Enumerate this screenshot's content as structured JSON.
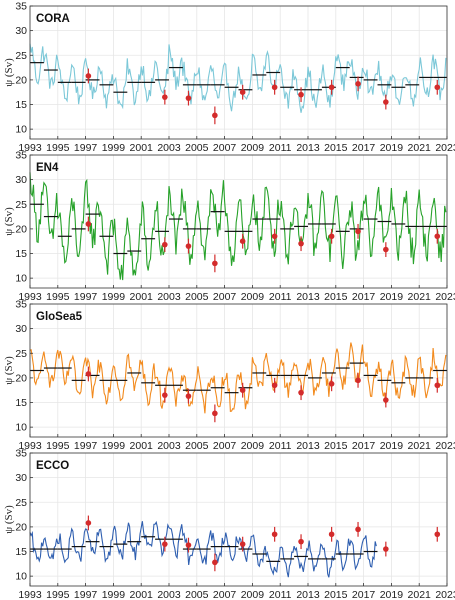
{
  "figure": {
    "panels": [
      {
        "title": "CORA",
        "color": "#7cc8d8"
      },
      {
        "title": "EN4",
        "color": "#27a22a"
      },
      {
        "title": "GloSea5",
        "color": "#f28a1d"
      },
      {
        "title": "ECCO",
        "color": "#2f5fb0"
      }
    ],
    "ylabel": "ψ (Sv)",
    "obs_color": "#d32b2b",
    "annual_mean_color": "#111111"
  },
  "chart_data": [
    {
      "type": "line",
      "title": "CORA",
      "ylabel": "ψ (Sv)",
      "xlim": [
        1993,
        2023
      ],
      "ylim": [
        8,
        35
      ],
      "xticks": [
        "1993",
        "1995",
        "1997",
        "1999",
        "2001",
        "2003",
        "2005",
        "2007",
        "2009",
        "2011",
        "2013",
        "2015",
        "2017",
        "2019",
        "2021",
        "2023"
      ],
      "yticks": [
        "10",
        "15",
        "20",
        "25",
        "30",
        "35"
      ],
      "grid": true,
      "annual_means": {
        "years": [
          1993,
          1994,
          1995,
          1996,
          1997,
          1998,
          1999,
          2000,
          2001,
          2002,
          2003,
          2004,
          2005,
          2006,
          2007,
          2008,
          2009,
          2010,
          2011,
          2012,
          2013,
          2014,
          2015,
          2016,
          2017,
          2018,
          2019,
          2020,
          2021,
          2022
        ],
        "values": [
          23.5,
          22.0,
          19.5,
          19.5,
          20.0,
          19.0,
          17.5,
          19.5,
          19.5,
          20.0,
          22.5,
          19.0,
          19.0,
          19.0,
          18.5,
          18.0,
          21.0,
          21.5,
          18.5,
          18.0,
          18.0,
          18.5,
          22.5,
          20.5,
          20.0,
          19.0,
          18.5,
          19.0,
          20.5,
          20.5
        ]
      },
      "observations": {
        "x": [
          1997.2,
          2002.7,
          2004.4,
          2006.3,
          2008.3,
          2010.6,
          2012.5,
          2014.7,
          2016.6,
          2018.6,
          2022.3
        ],
        "y": [
          20.8,
          16.5,
          16.3,
          12.8,
          17.5,
          18.5,
          17.0,
          18.5,
          19.2,
          15.5,
          18.5
        ],
        "err": [
          1.5,
          1.5,
          1.5,
          1.8,
          1.5,
          1.5,
          1.5,
          1.5,
          1.5,
          1.5,
          1.5
        ]
      }
    },
    {
      "type": "line",
      "title": "EN4",
      "ylabel": "ψ (Sv)",
      "xlim": [
        1993,
        2023
      ],
      "ylim": [
        8,
        35
      ],
      "xticks": [
        "1993",
        "1995",
        "1997",
        "1999",
        "2001",
        "2003",
        "2005",
        "2007",
        "2009",
        "2011",
        "2013",
        "2015",
        "2017",
        "2019",
        "2021",
        "2023"
      ],
      "yticks": [
        "10",
        "15",
        "20",
        "25",
        "30",
        "35"
      ],
      "grid": true,
      "annual_means": {
        "years": [
          1993,
          1994,
          1995,
          1996,
          1997,
          1998,
          1999,
          2000,
          2001,
          2002,
          2003,
          2004,
          2005,
          2006,
          2007,
          2008,
          2009,
          2010,
          2011,
          2012,
          2013,
          2014,
          2015,
          2016,
          2017,
          2018,
          2019,
          2020,
          2021,
          2022
        ],
        "values": [
          25.0,
          22.5,
          18.5,
          20.0,
          23.0,
          18.5,
          15.0,
          15.5,
          18.0,
          19.5,
          22.0,
          20.0,
          20.0,
          23.5,
          19.5,
          19.5,
          22.0,
          22.0,
          20.0,
          20.5,
          21.0,
          21.0,
          19.5,
          20.0,
          22.0,
          21.5,
          21.0,
          20.5,
          20.5,
          20.5
        ]
      },
      "observations": {
        "x": [
          1997.2,
          2002.7,
          2004.4,
          2006.3,
          2008.3,
          2010.6,
          2012.5,
          2014.7,
          2016.6,
          2018.6,
          2022.3
        ],
        "y": [
          21.0,
          16.8,
          16.5,
          13.0,
          17.5,
          18.5,
          17.0,
          18.5,
          19.5,
          15.8,
          18.5
        ],
        "err": [
          1.5,
          1.5,
          1.5,
          1.8,
          1.5,
          1.5,
          1.5,
          1.5,
          1.5,
          1.5,
          1.5
        ]
      }
    },
    {
      "type": "line",
      "title": "GloSea5",
      "ylabel": "ψ (Sv)",
      "xlim": [
        1993,
        2023
      ],
      "ylim": [
        8,
        35
      ],
      "xticks": [
        "1993",
        "1995",
        "1997",
        "1999",
        "2001",
        "2003",
        "2005",
        "2007",
        "2009",
        "2011",
        "2013",
        "2015",
        "2017",
        "2019",
        "2021",
        "2023"
      ],
      "yticks": [
        "10",
        "15",
        "20",
        "25",
        "30",
        "35"
      ],
      "grid": true,
      "annual_means": {
        "years": [
          1993,
          1994,
          1995,
          1996,
          1997,
          1998,
          1999,
          2000,
          2001,
          2002,
          2003,
          2004,
          2005,
          2006,
          2007,
          2008,
          2009,
          2010,
          2011,
          2012,
          2013,
          2014,
          2015,
          2016,
          2017,
          2018,
          2019,
          2020,
          2021,
          2022
        ],
        "values": [
          21.5,
          22.0,
          22.0,
          19.5,
          20.5,
          19.5,
          19.5,
          21.0,
          19.0,
          18.5,
          18.5,
          17.5,
          17.5,
          18.0,
          17.0,
          18.0,
          21.0,
          20.5,
          20.5,
          20.5,
          20.0,
          21.0,
          22.0,
          23.0,
          20.5,
          19.5,
          19.0,
          20.0,
          20.0,
          21.5
        ]
      },
      "observations": {
        "x": [
          1997.2,
          2002.7,
          2004.4,
          2006.3,
          2008.3,
          2010.6,
          2012.5,
          2014.7,
          2016.6,
          2018.6,
          2022.3
        ],
        "y": [
          20.8,
          16.5,
          16.3,
          12.8,
          17.5,
          18.5,
          17.0,
          18.8,
          19.5,
          15.5,
          18.5
        ],
        "err": [
          1.5,
          1.5,
          1.5,
          1.8,
          1.5,
          1.5,
          1.5,
          1.5,
          1.5,
          1.5,
          1.5
        ]
      }
    },
    {
      "type": "line",
      "title": "ECCO",
      "ylabel": "ψ (Sv)",
      "xlim": [
        1993,
        2023
      ],
      "ylim": [
        8,
        35
      ],
      "xticks": [
        "1993",
        "1995",
        "1997",
        "1999",
        "2001",
        "2003",
        "2005",
        "2007",
        "2009",
        "2011",
        "2013",
        "2015",
        "2017",
        "2019",
        "2021",
        "2023"
      ],
      "yticks": [
        "10",
        "15",
        "20",
        "25",
        "30",
        "35"
      ],
      "grid": true,
      "annual_means": {
        "years": [
          1993,
          1994,
          1995,
          1996,
          1997,
          1998,
          1999,
          2000,
          2001,
          2002,
          2003,
          2004,
          2005,
          2006,
          2007,
          2008,
          2009,
          2010,
          2011,
          2012,
          2013,
          2014,
          2015,
          2016,
          2017
        ],
        "values": [
          15.5,
          15.5,
          15.5,
          16.0,
          17.0,
          16.0,
          16.5,
          17.0,
          18.0,
          17.5,
          17.5,
          15.5,
          15.5,
          16.0,
          16.0,
          15.5,
          14.5,
          13.0,
          13.5,
          14.0,
          13.5,
          13.5,
          14.5,
          14.5,
          15.0
        ]
      },
      "observations": {
        "x": [
          1997.2,
          2002.7,
          2004.4,
          2006.3,
          2008.3,
          2010.6,
          2012.5,
          2014.7,
          2016.6,
          2018.6,
          2022.3
        ],
        "y": [
          20.8,
          16.5,
          16.3,
          12.8,
          16.5,
          18.5,
          17.0,
          18.5,
          19.5,
          15.5,
          18.5
        ],
        "err": [
          1.5,
          1.5,
          1.5,
          1.8,
          1.5,
          1.5,
          1.5,
          1.5,
          1.5,
          1.5,
          1.5
        ]
      }
    }
  ]
}
